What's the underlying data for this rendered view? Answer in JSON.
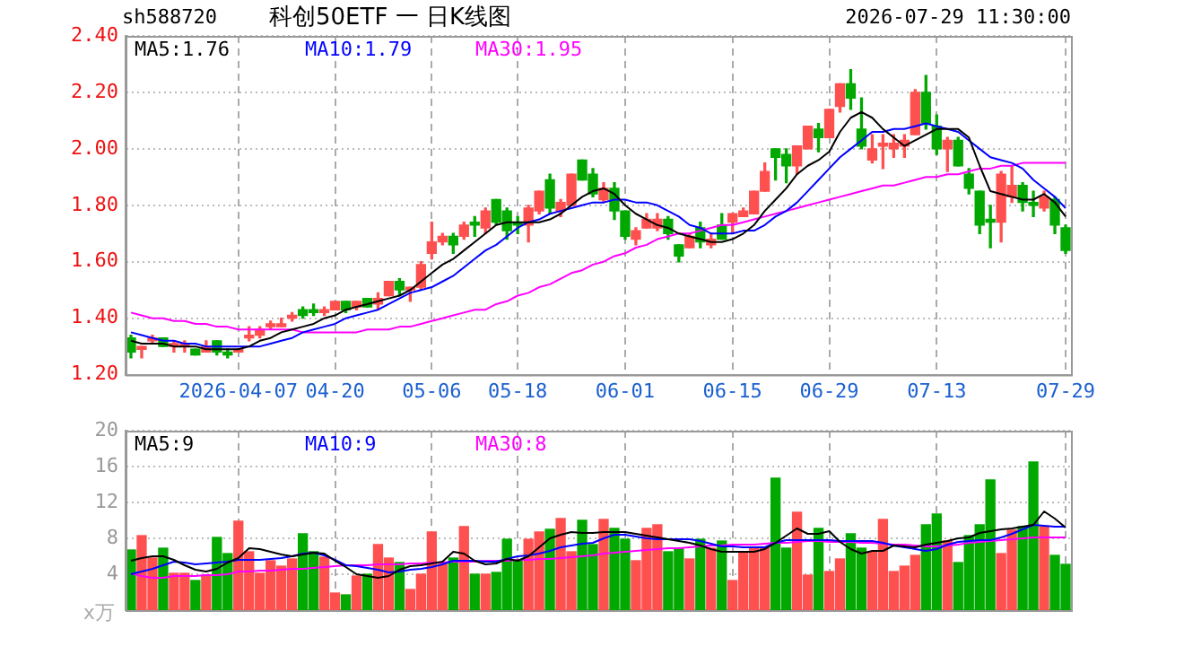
{
  "chart_data": [
    {
      "type": "candlestick",
      "title": "科创50ETF 一 日K线图",
      "annotations": [
        "sh588720",
        "2026-07-29 11:30:00"
      ],
      "categories": [
        null,
        null,
        null,
        null,
        null,
        null,
        null,
        null,
        null,
        null,
        "2026-04-07",
        null,
        null,
        null,
        null,
        null,
        null,
        null,
        null,
        "04-20",
        null,
        null,
        null,
        null,
        null,
        null,
        null,
        null,
        "05-06",
        null,
        null,
        null,
        null,
        null,
        null,
        null,
        "05-18",
        null,
        null,
        null,
        null,
        null,
        null,
        null,
        null,
        null,
        "06-01",
        null,
        null,
        null,
        null,
        null,
        null,
        null,
        null,
        null,
        "06-15",
        null,
        null,
        null,
        null,
        null,
        null,
        null,
        null,
        "06-29",
        null,
        null,
        null,
        null,
        null,
        null,
        null,
        null,
        null,
        "07-13",
        null,
        null,
        null,
        null,
        null,
        null,
        null,
        null,
        null,
        null,
        null,
        "07-29"
      ],
      "ohlc": [
        [
          1.33,
          1.34,
          1.26,
          1.28
        ],
        [
          1.29,
          1.3,
          1.26,
          1.3
        ],
        [
          1.32,
          1.34,
          1.31,
          1.33
        ],
        [
          1.33,
          1.33,
          1.3,
          1.3
        ],
        [
          1.3,
          1.32,
          1.28,
          1.31
        ],
        [
          1.3,
          1.32,
          1.28,
          1.31
        ],
        [
          1.29,
          1.29,
          1.27,
          1.27
        ],
        [
          1.28,
          1.32,
          1.28,
          1.3
        ],
        [
          1.32,
          1.32,
          1.27,
          1.28
        ],
        [
          1.28,
          1.29,
          1.26,
          1.27
        ],
        [
          1.28,
          1.29,
          1.28,
          1.29
        ],
        [
          1.33,
          1.37,
          1.32,
          1.34
        ],
        [
          1.34,
          1.37,
          1.33,
          1.36
        ],
        [
          1.37,
          1.39,
          1.36,
          1.38
        ],
        [
          1.37,
          1.4,
          1.37,
          1.38
        ],
        [
          1.4,
          1.42,
          1.39,
          1.41
        ],
        [
          1.43,
          1.44,
          1.4,
          1.41
        ],
        [
          1.43,
          1.45,
          1.41,
          1.42
        ],
        [
          1.42,
          1.44,
          1.41,
          1.43
        ],
        [
          1.43,
          1.46,
          1.43,
          1.46
        ],
        [
          1.46,
          1.46,
          1.42,
          1.43
        ],
        [
          1.44,
          1.46,
          1.43,
          1.46
        ],
        [
          1.47,
          1.47,
          1.44,
          1.44
        ],
        [
          1.45,
          1.49,
          1.43,
          1.47
        ],
        [
          1.48,
          1.53,
          1.48,
          1.53
        ],
        [
          1.53,
          1.54,
          1.48,
          1.5
        ],
        [
          1.5,
          1.51,
          1.46,
          1.51
        ],
        [
          1.51,
          1.6,
          1.5,
          1.59
        ],
        [
          1.63,
          1.74,
          1.61,
          1.67
        ],
        [
          1.67,
          1.7,
          1.66,
          1.69
        ],
        [
          1.69,
          1.7,
          1.63,
          1.66
        ],
        [
          1.69,
          1.74,
          1.68,
          1.73
        ],
        [
          1.74,
          1.76,
          1.69,
          1.73
        ],
        [
          1.72,
          1.79,
          1.7,
          1.78
        ],
        [
          1.82,
          1.82,
          1.73,
          1.74
        ],
        [
          1.78,
          1.79,
          1.68,
          1.71
        ],
        [
          1.74,
          1.76,
          1.7,
          1.73
        ],
        [
          1.73,
          1.8,
          1.67,
          1.79
        ],
        [
          1.78,
          1.85,
          1.77,
          1.85
        ],
        [
          1.89,
          1.91,
          1.77,
          1.79
        ],
        [
          1.78,
          1.82,
          1.76,
          1.81
        ],
        [
          1.8,
          1.91,
          1.8,
          1.91
        ],
        [
          1.96,
          1.96,
          1.89,
          1.89
        ],
        [
          1.91,
          1.93,
          1.83,
          1.84
        ],
        [
          1.82,
          1.88,
          1.81,
          1.86
        ],
        [
          1.86,
          1.88,
          1.75,
          1.78
        ],
        [
          1.78,
          1.78,
          1.68,
          1.69
        ],
        [
          1.68,
          1.72,
          1.66,
          1.71
        ],
        [
          1.72,
          1.77,
          1.72,
          1.75
        ],
        [
          1.72,
          1.77,
          1.71,
          1.75
        ],
        [
          1.75,
          1.76,
          1.68,
          1.7
        ],
        [
          1.66,
          1.66,
          1.6,
          1.62
        ],
        [
          1.65,
          1.7,
          1.65,
          1.69
        ],
        [
          1.72,
          1.74,
          1.65,
          1.67
        ],
        [
          1.66,
          1.7,
          1.65,
          1.68
        ],
        [
          1.73,
          1.77,
          1.68,
          1.68
        ],
        [
          1.74,
          1.77,
          1.7,
          1.77
        ],
        [
          1.76,
          1.79,
          1.76,
          1.78
        ],
        [
          1.77,
          1.85,
          1.77,
          1.85
        ],
        [
          1.85,
          1.95,
          1.85,
          1.92
        ],
        [
          2.0,
          2.0,
          1.89,
          1.97
        ],
        [
          1.98,
          2.0,
          1.88,
          1.94
        ],
        [
          1.94,
          2.01,
          1.91,
          2.01
        ],
        [
          2.0,
          2.08,
          2.0,
          2.08
        ],
        [
          2.07,
          2.09,
          1.99,
          2.04
        ],
        [
          2.04,
          2.14,
          2.04,
          2.14
        ],
        [
          2.15,
          2.23,
          2.13,
          2.23
        ],
        [
          2.23,
          2.28,
          2.14,
          2.18
        ],
        [
          2.07,
          2.18,
          2.0,
          2.01
        ],
        [
          1.96,
          2.05,
          1.95,
          2.0
        ],
        [
          2.01,
          2.05,
          1.93,
          2.02
        ],
        [
          2.0,
          2.05,
          1.97,
          2.02
        ],
        [
          2.01,
          2.05,
          1.97,
          2.03
        ],
        [
          2.05,
          2.21,
          2.05,
          2.2
        ],
        [
          2.2,
          2.26,
          2.07,
          2.09
        ],
        [
          2.08,
          2.12,
          1.98,
          2.0
        ],
        [
          2.0,
          2.04,
          1.92,
          2.03
        ],
        [
          2.03,
          2.04,
          1.94,
          1.94
        ],
        [
          1.91,
          1.93,
          1.84,
          1.86
        ],
        [
          1.85,
          1.85,
          1.7,
          1.73
        ],
        [
          1.75,
          1.8,
          1.65,
          1.74
        ],
        [
          1.74,
          1.92,
          1.67,
          1.91
        ],
        [
          1.83,
          1.94,
          1.81,
          1.87
        ],
        [
          1.87,
          1.88,
          1.78,
          1.81
        ],
        [
          1.81,
          1.85,
          1.76,
          1.8
        ],
        [
          1.79,
          1.85,
          1.78,
          1.83
        ],
        [
          1.82,
          1.83,
          1.7,
          1.73
        ],
        [
          1.72,
          1.73,
          1.63,
          1.64
        ]
      ],
      "colors": [
        "#00a800",
        "#ff5050",
        "#ff5050",
        "#00a800",
        "#ff5050",
        "#ff5050",
        "#00a800",
        "#ff5050",
        "#00a800",
        "#00a800",
        "#ff5050",
        "#ff5050",
        "#ff5050",
        "#ff5050",
        "#ff5050",
        "#ff5050",
        "#00a800",
        "#00a800",
        "#ff5050",
        "#ff5050",
        "#00a800",
        "#ff5050",
        "#00a800",
        "#ff5050",
        "#ff5050",
        "#00a800",
        "#ff5050",
        "#ff5050",
        "#ff5050",
        "#ff5050",
        "#00a800",
        "#ff5050",
        "#00a800",
        "#ff5050",
        "#00a800",
        "#00a800",
        "#00a800",
        "#ff5050",
        "#ff5050",
        "#00a800",
        "#ff5050",
        "#ff5050",
        "#00a800",
        "#00a800",
        "#ff5050",
        "#00a800",
        "#00a800",
        "#ff5050",
        "#ff5050",
        "#ff5050",
        "#00a800",
        "#00a800",
        "#ff5050",
        "#00a800",
        "#ff5050",
        "#00a800",
        "#ff5050",
        "#ff5050",
        "#ff5050",
        "#ff5050",
        "#00a800",
        "#00a800",
        "#ff5050",
        "#ff5050",
        "#00a800",
        "#ff5050",
        "#ff5050",
        "#00a800",
        "#00a800",
        "#ff5050",
        "#ff5050",
        "#ff5050",
        "#ff5050",
        "#ff5050",
        "#00a800",
        "#00a800",
        "#ff5050",
        "#00a800",
        "#00a800",
        "#00a800",
        "#00a800",
        "#ff5050",
        "#ff5050",
        "#00a800",
        "#00a800",
        "#ff5050",
        "#00a800",
        "#00a800"
      ],
      "series": [
        {
          "type": "line",
          "name": "MA5:1.76",
          "color": "#000000",
          "values": [
            1.32,
            1.31,
            1.31,
            1.31,
            1.3,
            1.3,
            1.3,
            1.29,
            1.29,
            1.29,
            1.29,
            1.3,
            1.32,
            1.33,
            1.35,
            1.36,
            1.37,
            1.38,
            1.4,
            1.41,
            1.43,
            1.44,
            1.45,
            1.46,
            1.47,
            1.48,
            1.5,
            1.53,
            1.56,
            1.59,
            1.61,
            1.64,
            1.67,
            1.7,
            1.73,
            1.74,
            1.74,
            1.74,
            1.74,
            1.75,
            1.77,
            1.8,
            1.83,
            1.85,
            1.86,
            1.84,
            1.8,
            1.77,
            1.75,
            1.73,
            1.72,
            1.7,
            1.69,
            1.68,
            1.67,
            1.67,
            1.68,
            1.7,
            1.73,
            1.78,
            1.82,
            1.86,
            1.91,
            1.94,
            1.96,
            1.99,
            2.06,
            2.11,
            2.13,
            2.11,
            2.07,
            2.04,
            2.01,
            2.03,
            2.05,
            2.07,
            2.07,
            2.07,
            2.04,
            1.94,
            1.85,
            1.84,
            1.83,
            1.82,
            1.82,
            1.84,
            1.81,
            1.76
          ]
        },
        {
          "type": "line",
          "name": "MA10:1.79",
          "color": "#0000ff",
          "values": [
            1.35,
            1.34,
            1.33,
            1.32,
            1.32,
            1.31,
            1.31,
            1.3,
            1.3,
            1.3,
            1.3,
            1.3,
            1.3,
            1.31,
            1.32,
            1.33,
            1.35,
            1.36,
            1.37,
            1.38,
            1.4,
            1.41,
            1.42,
            1.43,
            1.45,
            1.47,
            1.49,
            1.5,
            1.51,
            1.53,
            1.55,
            1.58,
            1.61,
            1.64,
            1.66,
            1.69,
            1.72,
            1.74,
            1.75,
            1.77,
            1.78,
            1.79,
            1.8,
            1.81,
            1.81,
            1.82,
            1.82,
            1.81,
            1.81,
            1.8,
            1.78,
            1.76,
            1.73,
            1.72,
            1.7,
            1.7,
            1.7,
            1.71,
            1.71,
            1.73,
            1.76,
            1.78,
            1.81,
            1.85,
            1.89,
            1.93,
            1.97,
            2.0,
            2.03,
            2.06,
            2.06,
            2.07,
            2.07,
            2.08,
            2.09,
            2.08,
            2.07,
            2.06,
            2.03,
            2.0,
            1.97,
            1.96,
            1.95,
            1.93,
            1.89,
            1.86,
            1.83,
            1.79
          ]
        },
        {
          "type": "line",
          "name": "MA30:1.95",
          "color": "#ff00ff",
          "values": [
            1.42,
            1.41,
            1.4,
            1.4,
            1.39,
            1.39,
            1.38,
            1.38,
            1.37,
            1.37,
            1.36,
            1.36,
            1.36,
            1.36,
            1.36,
            1.36,
            1.35,
            1.35,
            1.35,
            1.35,
            1.35,
            1.35,
            1.36,
            1.36,
            1.36,
            1.37,
            1.37,
            1.38,
            1.39,
            1.4,
            1.41,
            1.42,
            1.43,
            1.43,
            1.45,
            1.46,
            1.48,
            1.49,
            1.51,
            1.52,
            1.54,
            1.56,
            1.57,
            1.59,
            1.6,
            1.62,
            1.63,
            1.65,
            1.66,
            1.68,
            1.69,
            1.7,
            1.7,
            1.71,
            1.72,
            1.73,
            1.73,
            1.74,
            1.75,
            1.76,
            1.77,
            1.78,
            1.79,
            1.8,
            1.81,
            1.82,
            1.83,
            1.84,
            1.85,
            1.86,
            1.87,
            1.87,
            1.88,
            1.89,
            1.9,
            1.9,
            1.91,
            1.91,
            1.92,
            1.93,
            1.93,
            1.94,
            1.94,
            1.95,
            1.95,
            1.95,
            1.95,
            1.95
          ]
        }
      ],
      "ylim": [
        1.2,
        2.4
      ],
      "yticks": [
        {
          "value": 1.2,
          "label": "1.20"
        },
        {
          "value": 1.4,
          "label": "1.40"
        },
        {
          "value": 1.6,
          "label": "1.60"
        },
        {
          "value": 1.8,
          "label": "1.80"
        },
        {
          "value": 2.0,
          "label": "2.00"
        },
        {
          "value": 2.2,
          "label": "2.20"
        },
        {
          "value": 2.4,
          "label": "2.40"
        }
      ],
      "grid": true,
      "legend": "top left"
    },
    {
      "type": "bar",
      "ylabel": "x万",
      "tick_labels": "y",
      "categories": [
        null,
        null,
        null,
        null,
        null,
        null,
        null,
        null,
        null,
        null,
        null,
        null,
        null,
        null,
        null,
        null,
        null,
        null,
        null,
        null,
        null,
        null,
        null,
        null,
        null,
        null,
        null,
        null,
        null,
        null,
        null,
        null,
        null,
        null,
        null,
        null,
        null,
        null,
        null,
        null,
        null,
        null,
        null,
        null,
        null,
        null,
        null,
        null,
        null,
        null,
        null,
        null,
        null,
        null,
        null,
        null,
        null,
        null,
        null,
        null,
        null,
        null,
        null,
        null,
        null,
        null,
        null,
        null,
        null,
        null,
        null,
        null,
        null,
        null,
        null,
        null,
        null,
        null,
        null,
        null,
        null,
        null,
        null,
        null,
        null,
        null,
        null,
        null
      ],
      "values": [
        6.7,
        8.3,
        5.8,
        6.9,
        4.1,
        4.1,
        3.3,
        3.9,
        8.1,
        6.3,
        9.9,
        6.5,
        4.1,
        5.5,
        4.9,
        5.7,
        8.5,
        6.5,
        5.9,
        1.9,
        1.7,
        3.8,
        4.0,
        7.3,
        5.8,
        5.3,
        2.3,
        4.0,
        8.7,
        5.1,
        5.8,
        9.3,
        4.0,
        4.0,
        4.2,
        7.9,
        5.5,
        7.9,
        8.7,
        9.0,
        10.2,
        6.5,
        10.0,
        7.3,
        10.1,
        9.1,
        7.9,
        5.5,
        9.1,
        9.5,
        6.5,
        6.9,
        5.7,
        7.9,
        6.9,
        7.7,
        3.3,
        6.5,
        6.9,
        6.9,
        14.7,
        6.9,
        10.9,
        3.9,
        9.1,
        4.3,
        5.7,
        8.5,
        6.9,
        6.5,
        10.1,
        4.3,
        4.9,
        6.1,
        9.5,
        10.7,
        7.7,
        5.3,
        8.3,
        9.5,
        14.5,
        6.3,
        8.9,
        9.3,
        16.5,
        9.3,
        6.1,
        5.1
      ],
      "colors": [
        "#00a800",
        "#ff5050",
        "#ff5050",
        "#00a800",
        "#ff5050",
        "#ff5050",
        "#00a800",
        "#ff5050",
        "#00a800",
        "#00a800",
        "#ff5050",
        "#ff5050",
        "#ff5050",
        "#ff5050",
        "#ff5050",
        "#ff5050",
        "#00a800",
        "#00a800",
        "#ff5050",
        "#ff5050",
        "#00a800",
        "#ff5050",
        "#00a800",
        "#ff5050",
        "#ff5050",
        "#00a800",
        "#ff5050",
        "#ff5050",
        "#ff5050",
        "#ff5050",
        "#00a800",
        "#ff5050",
        "#00a800",
        "#ff5050",
        "#00a800",
        "#00a800",
        "#00a800",
        "#ff5050",
        "#ff5050",
        "#00a800",
        "#ff5050",
        "#ff5050",
        "#00a800",
        "#00a800",
        "#ff5050",
        "#00a800",
        "#00a800",
        "#ff5050",
        "#ff5050",
        "#ff5050",
        "#00a800",
        "#00a800",
        "#ff5050",
        "#00a800",
        "#ff5050",
        "#00a800",
        "#ff5050",
        "#ff5050",
        "#ff5050",
        "#ff5050",
        "#00a800",
        "#00a800",
        "#ff5050",
        "#ff5050",
        "#00a800",
        "#ff5050",
        "#ff5050",
        "#00a800",
        "#00a800",
        "#ff5050",
        "#ff5050",
        "#ff5050",
        "#ff5050",
        "#ff5050",
        "#00a800",
        "#00a800",
        "#ff5050",
        "#00a800",
        "#00a800",
        "#00a800",
        "#00a800",
        "#ff5050",
        "#ff5050",
        "#00a800",
        "#00a800",
        "#ff5050",
        "#00a800",
        "#00a800"
      ],
      "series": [
        {
          "type": "line",
          "name": "MA5:9",
          "color": "#000000",
          "values": [
            5.5,
            5.8,
            6.0,
            6.0,
            5.6,
            5.0,
            4.5,
            4.3,
            4.6,
            5.3,
            5.8,
            6.9,
            6.8,
            6.5,
            6.2,
            6.0,
            6.2,
            6.4,
            6.3,
            5.5,
            4.8,
            4.0,
            3.8,
            3.6,
            3.8,
            4.5,
            4.9,
            5.0,
            5.2,
            5.4,
            6.5,
            6.3,
            5.5,
            5.1,
            5.2,
            5.7,
            5.5,
            6.0,
            7.0,
            8.0,
            8.4,
            8.7,
            8.6,
            8.6,
            8.7,
            8.7,
            8.7,
            8.5,
            8.3,
            8.1,
            7.9,
            7.7,
            7.5,
            7.2,
            6.8,
            6.5,
            6.5,
            6.5,
            6.5,
            6.8,
            7.5,
            8.3,
            9.1,
            8.5,
            8.5,
            8.8,
            7.6,
            6.8,
            6.3,
            6.6,
            6.6,
            7.2,
            7.1,
            7.0,
            7.3,
            7.5,
            7.7,
            8.0,
            8.1,
            8.6,
            8.8,
            9.0,
            9.1,
            9.3,
            9.5,
            11.0,
            10.2,
            9.2
          ]
        },
        {
          "type": "line",
          "name": "MA10:9",
          "color": "#0000ff",
          "values": [
            4.0,
            4.3,
            4.6,
            5.0,
            5.4,
            5.3,
            5.1,
            5.2,
            5.3,
            5.4,
            5.6,
            5.6,
            5.6,
            5.7,
            5.8,
            6.0,
            6.3,
            6.4,
            6.1,
            5.6,
            5.0,
            4.9,
            4.7,
            4.5,
            4.2,
            4.3,
            4.5,
            4.6,
            4.8,
            5.1,
            5.5,
            5.5,
            5.5,
            5.4,
            5.4,
            5.7,
            6.0,
            6.1,
            6.3,
            6.6,
            7.0,
            7.2,
            7.4,
            7.5,
            8.0,
            8.4,
            8.4,
            8.2,
            8.0,
            7.9,
            7.9,
            7.9,
            7.9,
            7.7,
            7.4,
            7.1,
            7.1,
            7.0,
            7.0,
            7.0,
            7.5,
            7.8,
            7.8,
            7.8,
            7.8,
            7.8,
            7.7,
            7.7,
            7.7,
            7.7,
            7.5,
            7.2,
            7.0,
            6.8,
            6.6,
            6.8,
            7.3,
            7.6,
            7.7,
            7.8,
            7.8,
            8.1,
            8.5,
            9.0,
            9.5,
            9.4,
            9.3,
            9.3
          ]
        },
        {
          "type": "line",
          "name": "MA30:8",
          "color": "#ff00ff",
          "values": [
            4.1,
            3.8,
            3.6,
            3.6,
            3.8,
            3.8,
            3.8,
            3.9,
            3.9,
            4.0,
            4.3,
            4.3,
            4.4,
            4.4,
            4.5,
            4.6,
            4.6,
            4.7,
            4.8,
            4.9,
            5.0,
            5.0,
            5.0,
            5.1,
            5.1,
            5.1,
            5.2,
            5.2,
            5.3,
            5.3,
            5.4,
            5.4,
            5.4,
            5.5,
            5.5,
            5.5,
            5.6,
            5.6,
            5.7,
            5.7,
            5.8,
            5.9,
            6.0,
            6.1,
            6.3,
            6.4,
            6.5,
            6.6,
            6.7,
            6.8,
            6.9,
            6.9,
            7.0,
            7.1,
            7.2,
            7.2,
            7.3,
            7.3,
            7.3,
            7.4,
            7.5,
            7.5,
            7.6,
            7.7,
            7.7,
            7.6,
            7.6,
            7.6,
            7.5,
            7.5,
            7.4,
            7.3,
            7.3,
            7.2,
            7.1,
            7.1,
            7.2,
            7.3,
            7.5,
            7.6,
            7.7,
            7.8,
            7.9,
            8.0,
            8.1,
            8.1,
            8.1,
            8.1
          ]
        }
      ],
      "ylim": [
        0,
        20
      ],
      "yticks": [
        4,
        8,
        12,
        16,
        20
      ],
      "grid": true,
      "legend": "top left"
    }
  ]
}
